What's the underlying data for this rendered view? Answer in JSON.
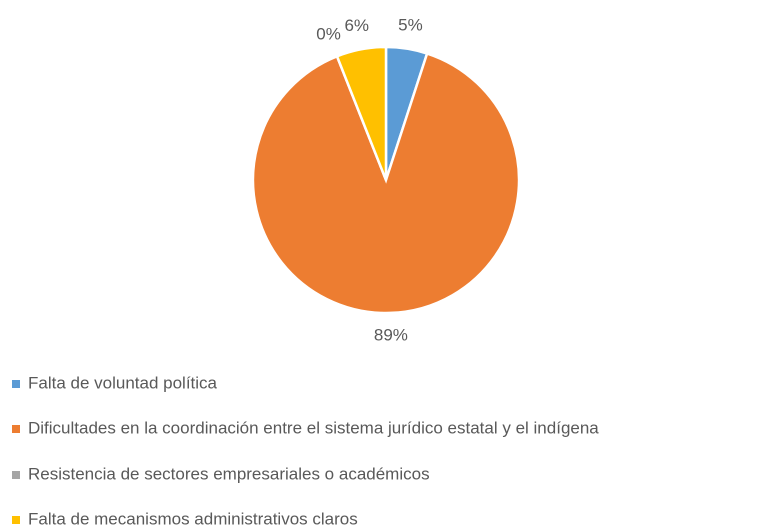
{
  "chart_data": {
    "type": "pie",
    "categories": [
      "Falta de voluntad política",
      "Dificultades en la coordinación entre el sistema jurídico estatal y el indígena",
      "Resistencia de sectores empresariales o académicos",
      "Falta de mecanismos administrativos claros"
    ],
    "values": [
      5,
      89,
      0,
      6
    ],
    "value_labels": [
      "5%",
      "89%",
      "0%",
      "6%"
    ],
    "colors": [
      "#5b9bd5",
      "#ed7d31",
      "#a5a5a5",
      "#ffc000"
    ],
    "legend": "bottom"
  }
}
